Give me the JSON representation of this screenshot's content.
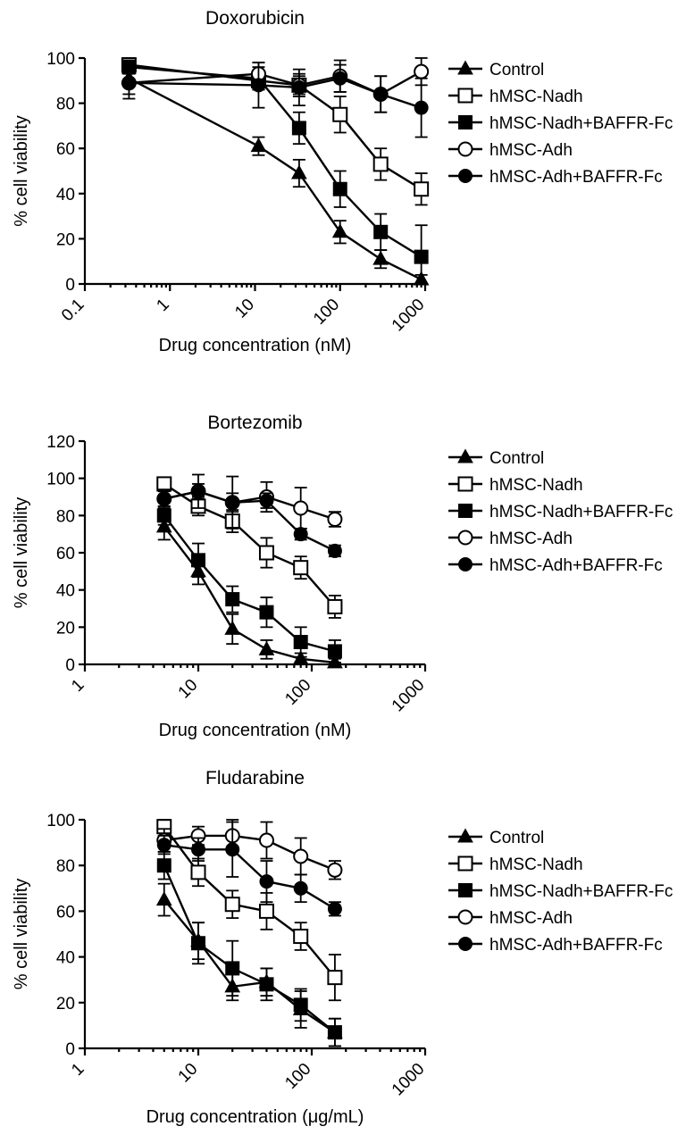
{
  "chart_data": [
    {
      "type": "line",
      "title": "Doxorubicin",
      "xlabel": "Drug concentration (nM)",
      "ylabel": "% cell viability",
      "xscale": "log",
      "xlim": [
        0.1,
        1000
      ],
      "ylim": [
        0,
        100
      ],
      "xticks": [
        0.1,
        1,
        10,
        100,
        1000
      ],
      "xtick_labels": [
        "0.1",
        "1",
        "10",
        "100",
        "1000"
      ],
      "yticks": [
        0,
        20,
        40,
        60,
        80,
        100
      ],
      "ytick_labels": [
        "0",
        "20",
        "40",
        "60",
        "80",
        "100"
      ],
      "legend_position": "right",
      "x": [
        0.33,
        11,
        33,
        100,
        300,
        900
      ],
      "series": [
        {
          "name": "Control",
          "marker": "triangle-filled",
          "values": [
            91,
            61,
            49,
            23,
            11,
            2
          ],
          "errors": [
            3,
            4,
            6,
            5,
            4,
            2
          ]
        },
        {
          "name": "hMSC-Nadh",
          "marker": "square-open",
          "values": [
            97,
            90,
            88,
            75,
            53,
            42
          ],
          "errors": [
            3,
            4,
            4,
            8,
            7,
            7
          ]
        },
        {
          "name": "hMSC-Nadh+BAFFR-Fc",
          "marker": "square-filled",
          "values": [
            96,
            91,
            69,
            42,
            23,
            12
          ],
          "errors": [
            3,
            5,
            7,
            8,
            8,
            14
          ]
        },
        {
          "name": "hMSC-Adh",
          "marker": "circle-open",
          "values": [
            89,
            93,
            88,
            92,
            84,
            94
          ],
          "errors": [
            5,
            5,
            5,
            7,
            8,
            6
          ]
        },
        {
          "name": "hMSC-Adh+BAFFR-Fc",
          "marker": "circle-filled",
          "values": [
            89,
            88,
            87,
            91,
            84,
            78
          ],
          "errors": [
            7,
            10,
            8,
            6,
            8,
            13
          ]
        }
      ]
    },
    {
      "type": "line",
      "title": "Bortezomib",
      "xlabel": "Drug concentration (nM)",
      "ylabel": "% cell viability",
      "xscale": "log",
      "xlim": [
        1,
        1000
      ],
      "ylim": [
        0,
        120
      ],
      "xticks": [
        1,
        10,
        100,
        1000
      ],
      "xtick_labels": [
        "1",
        "10",
        "100",
        "1000"
      ],
      "yticks": [
        0,
        20,
        40,
        60,
        80,
        100,
        120
      ],
      "ytick_labels": [
        "0",
        "20",
        "40",
        "60",
        "80",
        "100",
        "120"
      ],
      "legend_position": "right",
      "x": [
        5,
        10,
        20,
        40,
        80,
        160
      ],
      "series": [
        {
          "name": "Control",
          "marker": "triangle-filled",
          "values": [
            74,
            50,
            19,
            8,
            3,
            1
          ],
          "errors": [
            7,
            7,
            8,
            5,
            3,
            2
          ]
        },
        {
          "name": "hMSC-Nadh",
          "marker": "square-open",
          "values": [
            97,
            85,
            77,
            60,
            52,
            31
          ],
          "errors": [
            3,
            5,
            6,
            8,
            6,
            6
          ]
        },
        {
          "name": "hMSC-Nadh+BAFFR-Fc",
          "marker": "square-filled",
          "values": [
            80,
            56,
            35,
            28,
            12,
            7
          ],
          "errors": [
            5,
            9,
            7,
            8,
            8,
            6
          ]
        },
        {
          "name": "hMSC-Adh",
          "marker": "circle-open",
          "values": [
            89,
            93,
            87,
            90,
            84,
            78
          ],
          "errors": [
            5,
            9,
            14,
            8,
            11,
            4
          ]
        },
        {
          "name": "hMSC-Adh+BAFFR-Fc",
          "marker": "circle-filled",
          "values": [
            89,
            93,
            87,
            88,
            70,
            61
          ],
          "errors": [
            4,
            4,
            5,
            4,
            3,
            3
          ]
        }
      ]
    },
    {
      "type": "line",
      "title": "Fludarabine",
      "xlabel": "Drug concentration (μg/mL)",
      "ylabel": "% cell viability",
      "xscale": "log",
      "xlim": [
        1,
        1000
      ],
      "ylim": [
        0,
        100
      ],
      "xticks": [
        1,
        10,
        100,
        1000
      ],
      "xtick_labels": [
        "1",
        "10",
        "100",
        "1000"
      ],
      "yticks": [
        0,
        20,
        40,
        60,
        80,
        100
      ],
      "ytick_labels": [
        "0",
        "20",
        "40",
        "60",
        "80",
        "100"
      ],
      "legend_position": "right",
      "x": [
        5,
        10,
        20,
        40,
        80,
        160
      ],
      "series": [
        {
          "name": "Control",
          "marker": "triangle-filled",
          "values": [
            65,
            47,
            27,
            29,
            17,
            7
          ],
          "errors": [
            7,
            8,
            6,
            6,
            8,
            6
          ]
        },
        {
          "name": "hMSC-Nadh",
          "marker": "square-open",
          "values": [
            97,
            77,
            63,
            60,
            49,
            31
          ],
          "errors": [
            3,
            6,
            6,
            8,
            6,
            10
          ]
        },
        {
          "name": "hMSC-Nadh+BAFFR-Fc",
          "marker": "square-filled",
          "values": [
            80,
            46,
            35,
            28,
            19,
            7
          ],
          "errors": [
            6,
            9,
            12,
            7,
            7,
            6
          ]
        },
        {
          "name": "hMSC-Adh",
          "marker": "circle-open",
          "values": [
            91,
            93,
            93,
            91,
            84,
            78
          ],
          "errors": [
            5,
            4,
            7,
            8,
            8,
            4
          ]
        },
        {
          "name": "hMSC-Adh+BAFFR-Fc",
          "marker": "circle-filled",
          "values": [
            89,
            87,
            87,
            73,
            70,
            61
          ],
          "errors": [
            4,
            5,
            12,
            9,
            6,
            3
          ]
        }
      ]
    }
  ]
}
